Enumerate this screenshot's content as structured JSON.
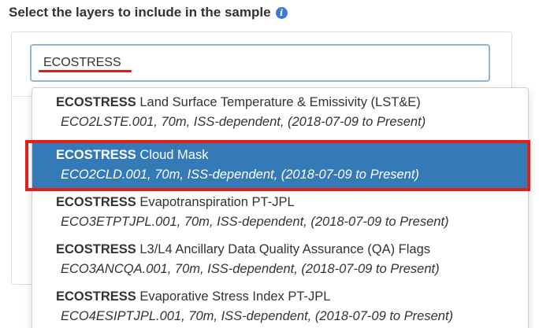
{
  "heading": {
    "text": "Select the layers to include in the sample",
    "icon": "info-icon",
    "icon_glyph": "i"
  },
  "search": {
    "value": "ECOSTRESS",
    "placeholder": ""
  },
  "colors": {
    "selected_bg": "#337ab7",
    "annotation_red": "#e0201b",
    "info_blue": "#3a7bd5"
  },
  "dropdown": {
    "options": [
      {
        "brand": "ECOSTRESS",
        "name": " Land Surface Temperature & Emissivity (LST&E)",
        "details": "ECO2LSTE.001, 70m, ISS-dependent, (2018-07-09 to Present)",
        "selected": false
      },
      {
        "brand": "ECOSTRESS",
        "name": " Cloud Mask",
        "details": "ECO2CLD.001, 70m, ISS-dependent, (2018-07-09 to Present)",
        "selected": true
      },
      {
        "brand": "ECOSTRESS",
        "name": " Evapotranspiration PT-JPL",
        "details": "ECO3ETPTJPL.001, 70m, ISS-dependent, (2018-07-09 to Present)",
        "selected": false
      },
      {
        "brand": "ECOSTRESS",
        "name": " L3/L4 Ancillary Data Quality Assurance (QA) Flags",
        "details": "ECO3ANCQA.001, 70m, ISS-dependent, (2018-07-09 to Present)",
        "selected": false
      },
      {
        "brand": "ECOSTRESS",
        "name": " Evaporative Stress Index PT-JPL",
        "details": "ECO4ESIPTJPL.001, 70m, ISS-dependent, (2018-07-09 to Present)",
        "selected": false
      }
    ]
  }
}
